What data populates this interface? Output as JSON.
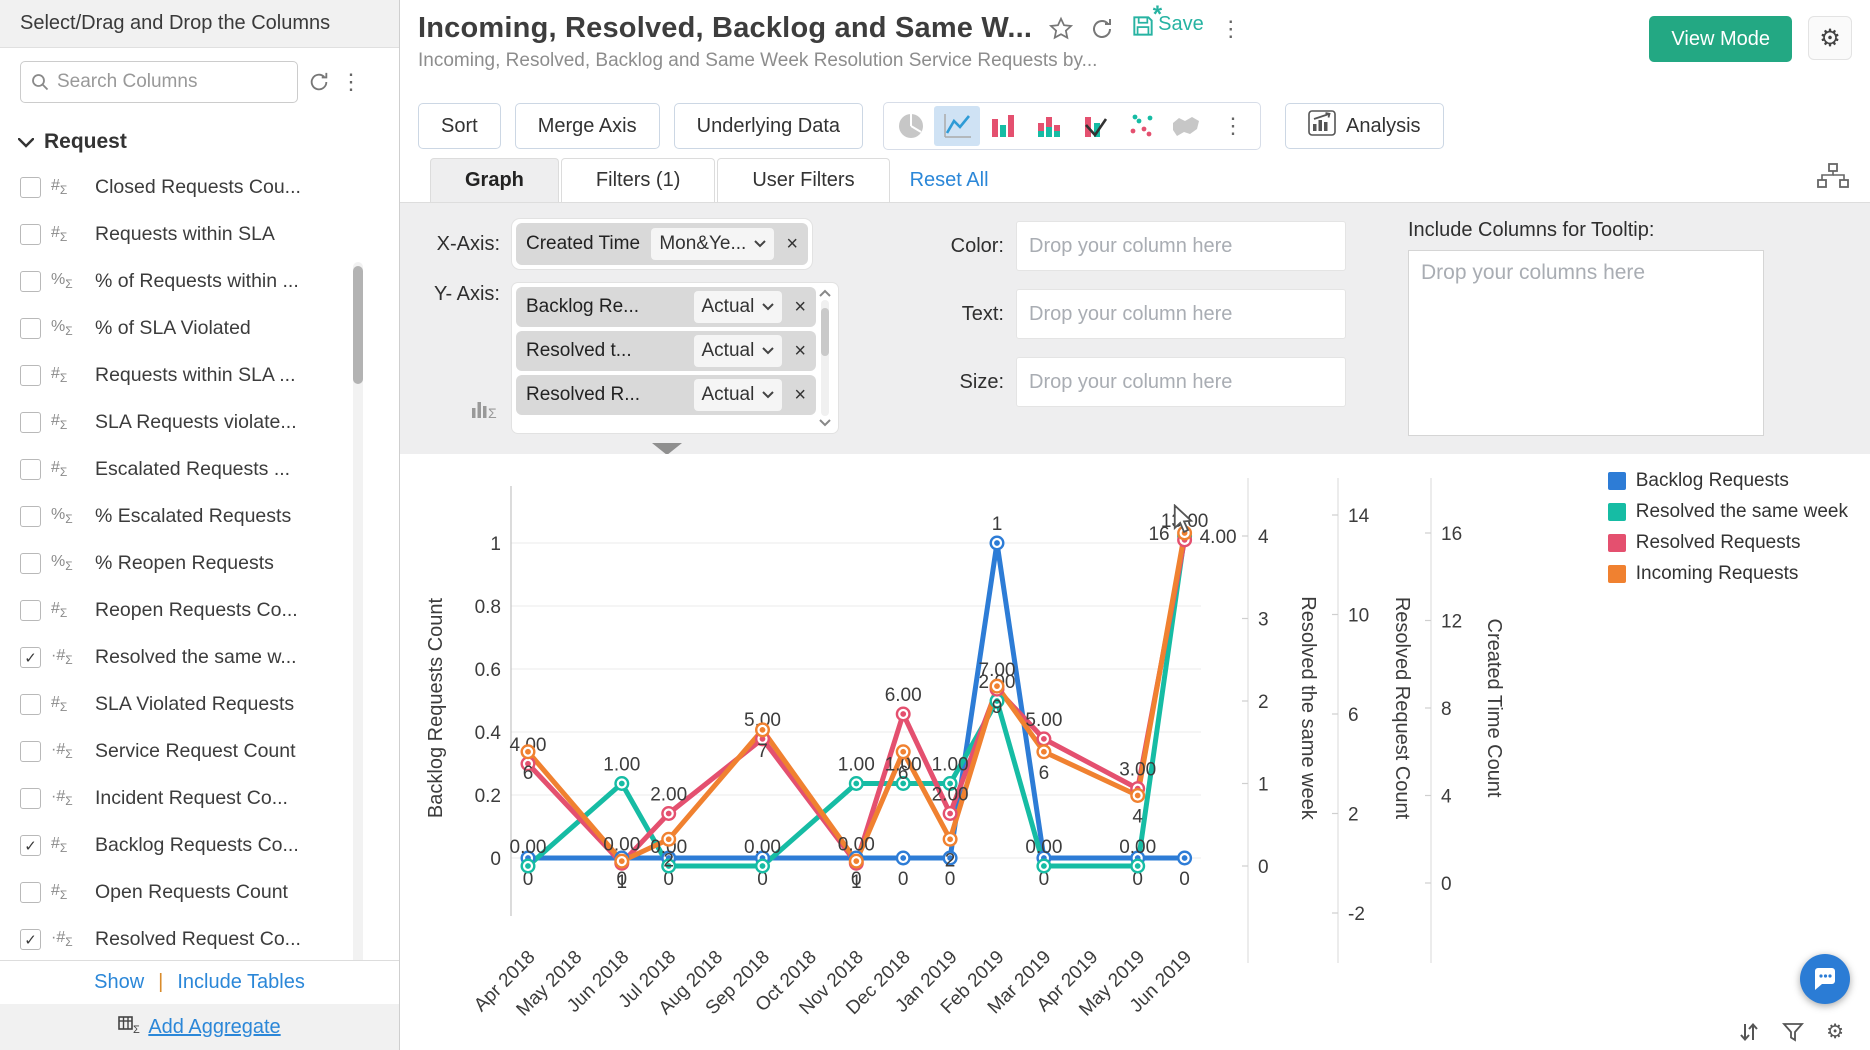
{
  "sidebar": {
    "header": "Select/Drag and Drop the Columns",
    "search_placeholder": "Search Columns",
    "section": "Request",
    "items": [
      {
        "label": "Closed Requests Cou...",
        "icon": "#",
        "checked": false
      },
      {
        "label": "Requests within SLA",
        "icon": "#",
        "checked": false
      },
      {
        "label": "% of Requests within ...",
        "icon": "%",
        "checked": false
      },
      {
        "label": "% of SLA Violated",
        "icon": "%",
        "checked": false
      },
      {
        "label": "Requests within SLA ...",
        "icon": "#",
        "checked": false
      },
      {
        "label": "SLA Requests violate...",
        "icon": "#",
        "checked": false
      },
      {
        "label": "Escalated Requests ...",
        "icon": "#",
        "checked": false
      },
      {
        "label": "% Escalated Requests",
        "icon": "%",
        "checked": false
      },
      {
        "label": "% Reopen Requests",
        "icon": "%",
        "checked": false
      },
      {
        "label": "Reopen Requests Co...",
        "icon": "#",
        "checked": false
      },
      {
        "label": "Resolved the same w...",
        "icon": "·#",
        "checked": true
      },
      {
        "label": "SLA Violated Requests",
        "icon": "#",
        "checked": false
      },
      {
        "label": "Service Request Count",
        "icon": "·#",
        "checked": false
      },
      {
        "label": "Incident Request Co...",
        "icon": "·#",
        "checked": false
      },
      {
        "label": "Backlog Requests Co...",
        "icon": "#",
        "checked": true
      },
      {
        "label": "Open Requests Count",
        "icon": "#",
        "checked": false
      },
      {
        "label": "Resolved Request Co...",
        "icon": "·#",
        "checked": true
      }
    ],
    "show_link": "Show",
    "links_divider": "|",
    "include_tables_link": "Include Tables",
    "add_aggregate": "Add Aggregate"
  },
  "header": {
    "title": "Incoming, Resolved, Backlog and Same W...",
    "subtitle": "Incoming, Resolved, Backlog and Same Week Resolution Service Requests by...",
    "save_label": "Save",
    "view_mode_label": "View Mode"
  },
  "toolbar": {
    "sort": "Sort",
    "merge_axis": "Merge Axis",
    "underlying_data": "Underlying Data",
    "analysis": "Analysis"
  },
  "tabs": {
    "graph": "Graph",
    "filters": "Filters (1)",
    "user_filters": "User Filters",
    "reset_all": "Reset All"
  },
  "config": {
    "x_axis_label": "X-Axis:",
    "x_axis_chip": "Created Time",
    "x_axis_dropdown": "Mon&Ye...",
    "x_axis_close": "×",
    "y_axis_label": "Y- Axis:",
    "y_chips": [
      {
        "name": "Backlog Re...",
        "agg": "Actual"
      },
      {
        "name": "Resolved t...",
        "agg": "Actual"
      },
      {
        "name": "Resolved R...",
        "agg": "Actual"
      }
    ],
    "color_label": "Color:",
    "text_label": "Text:",
    "size_label": "Size:",
    "drop_placeholder": "Drop your column here",
    "tooltip_label": "Include Columns for Tooltip:",
    "tooltip_placeholder": "Drop your columns here"
  },
  "chart_data": {
    "type": "line",
    "title": "",
    "categories": [
      "Apr 2018",
      "May 2018",
      "Jun 2018",
      "Jul 2018",
      "Aug 2018",
      "Sep 2018",
      "Oct 2018",
      "Nov 2018",
      "Dec 2018",
      "Jan 2019",
      "Feb 2019",
      "Mar 2019",
      "Apr 2019",
      "May 2019",
      "Jun 2019"
    ],
    "series": [
      {
        "name": "Backlog Requests",
        "color": "#2d7cd6",
        "axis": "backlog",
        "label_format": "integer",
        "values": [
          0,
          null,
          0,
          0,
          null,
          0,
          null,
          0,
          0,
          0,
          1,
          0,
          null,
          0,
          0
        ]
      },
      {
        "name": "Resolved the same week",
        "color": "#16bca4",
        "axis": "same_week",
        "label_format": "decimal",
        "values": [
          0,
          null,
          1,
          0,
          null,
          0,
          null,
          1,
          1,
          1,
          2,
          0,
          null,
          0,
          4
        ]
      },
      {
        "name": "Resolved Requests",
        "color": "#e4506f",
        "axis": "resolved",
        "label_format": "decimal",
        "values": [
          4,
          null,
          0,
          2,
          null,
          5,
          null,
          0,
          6,
          2,
          7,
          5,
          null,
          3,
          13
        ]
      },
      {
        "name": "Incoming Requests",
        "color": "#f08130",
        "axis": "created",
        "label_format": "integer",
        "values": [
          6,
          null,
          1,
          2,
          null,
          7,
          null,
          1,
          6,
          2,
          9,
          6,
          null,
          4,
          16
        ]
      }
    ],
    "axes": {
      "backlog": {
        "title": "Backlog Requests Count",
        "side": "left",
        "range": [
          0,
          1
        ],
        "ticks": [
          0,
          0.2,
          0.4,
          0.6,
          0.8,
          1
        ]
      },
      "same_week": {
        "title": "Resolved the same week",
        "side": "right",
        "range": [
          0,
          4
        ],
        "ticks": [
          0,
          1,
          2,
          3,
          4
        ]
      },
      "resolved": {
        "title": "Resolved Request Count",
        "side": "right",
        "range": [
          -2,
          14
        ],
        "ticks": [
          -2,
          2,
          6,
          10,
          14
        ]
      },
      "created": {
        "title": "Created Time Count",
        "side": "right",
        "range": [
          0,
          16
        ],
        "ticks": [
          0,
          4,
          8,
          12,
          16
        ]
      }
    },
    "grid": true,
    "legend_position": "right"
  }
}
